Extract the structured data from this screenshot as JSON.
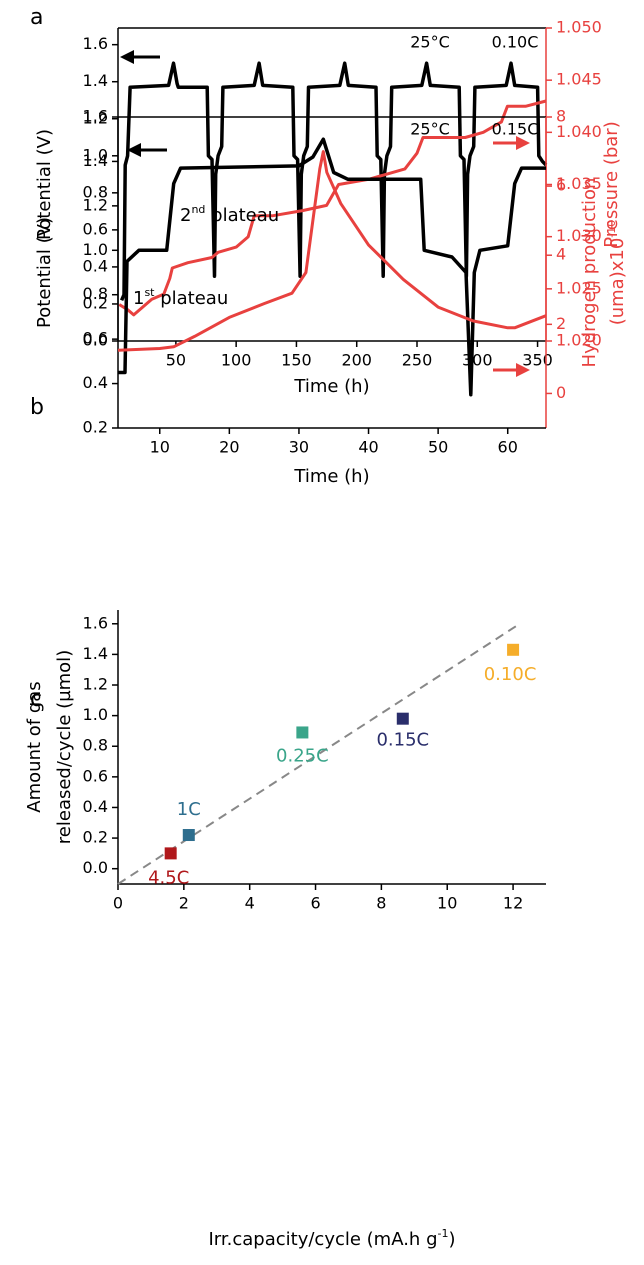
{
  "chart_data": [
    {
      "type": "line",
      "panel": "a",
      "annotations": [
        "25°C",
        "0.10C"
      ],
      "xlabel": "Time (h)",
      "ylabel": "Potential (V)",
      "y2label": "Pressure (bar)",
      "xlim": [
        2,
        357
      ],
      "xticks": [
        50,
        100,
        150,
        200,
        250,
        300,
        350
      ],
      "ylim": [
        0,
        1.69
      ],
      "yticks": [
        {
          "value": 0,
          "label": "0.0"
        },
        0.2,
        0.4,
        0.6,
        0.8,
        {
          "value": 1,
          "label": "1.0"
        },
        1.2,
        1.4,
        1.6
      ],
      "y2lim": [
        1.02,
        1.05
      ],
      "y2ticks": [
        {
          "value": 1.02,
          "label": "1.020"
        },
        1.025,
        {
          "value": 1.03,
          "label": "1.030"
        },
        1.035,
        {
          "value": 1.04,
          "label": "1.040"
        },
        1.045,
        {
          "value": 1.05,
          "label": "1.050"
        }
      ],
      "series": [
        {
          "color": "#000000",
          "x": [
            5,
            7,
            8,
            10,
            12,
            44,
            48,
            51,
            52,
            76,
            77,
            80,
            82,
            83,
            85,
            88,
            89,
            115,
            119,
            122,
            147,
            148,
            151,
            153,
            154,
            156,
            159,
            160,
            186,
            190,
            193,
            216,
            217,
            220,
            222,
            223,
            225,
            228,
            229,
            254,
            258,
            261,
            285,
            286,
            289,
            291,
            292,
            294,
            297,
            298,
            324,
            328,
            331,
            350,
            351,
            354,
            357
          ],
          "values": [
            0.22,
            0.25,
            0.95,
            1.0,
            1.37,
            1.38,
            1.5,
            1.39,
            1.37,
            1.37,
            1.0,
            0.98,
            0.35,
            0.9,
            1.0,
            1.05,
            1.37,
            1.38,
            1.5,
            1.38,
            1.37,
            1.0,
            0.98,
            0.35,
            0.9,
            1.0,
            1.05,
            1.37,
            1.38,
            1.5,
            1.38,
            1.37,
            1.0,
            0.98,
            0.35,
            0.9,
            1.0,
            1.05,
            1.37,
            1.38,
            1.5,
            1.38,
            1.37,
            1.0,
            0.98,
            0.35,
            0.9,
            1.0,
            1.05,
            1.37,
            1.38,
            1.5,
            1.38,
            1.37,
            1.0,
            0.97,
            0.95
          ]
        },
        {
          "color": "#e8413f",
          "axis": "y2",
          "x": [
            3,
            10,
            15,
            30,
            40,
            45,
            47,
            60,
            80,
            85,
            100,
            110,
            115,
            130,
            155,
            175,
            180,
            185,
            210,
            240,
            250,
            255,
            290,
            305,
            320,
            325,
            340,
            357
          ],
          "values": [
            1.0235,
            1.023,
            1.0225,
            1.024,
            1.0245,
            1.026,
            1.027,
            1.0275,
            1.028,
            1.0285,
            1.029,
            1.03,
            1.032,
            1.032,
            1.0325,
            1.033,
            1.034,
            1.035,
            1.0355,
            1.0365,
            1.038,
            1.0395,
            1.0395,
            1.04,
            1.041,
            1.0425,
            1.0425,
            1.043
          ]
        }
      ]
    },
    {
      "type": "line",
      "panel": "b",
      "annotations": [
        "25°C",
        "0.15C"
      ],
      "plateau_labels": [
        [
          "2",
          "nd",
          " plateau"
        ],
        [
          "1",
          "st",
          " plateau"
        ]
      ],
      "xlabel": "Time (h)",
      "ylabel": "Potential (V)",
      "y2label": [
        "Hydrogen production",
        "(uma)x10",
        "-10"
      ],
      "xlim": [
        4,
        65.5
      ],
      "xticks": [
        10,
        20,
        30,
        40,
        50,
        60
      ],
      "ylim": [
        0.2,
        1.6
      ],
      "yticks": [
        0.2,
        0.4,
        0.6,
        0.8,
        {
          "value": 1,
          "label": "1.0"
        },
        1.2,
        1.4,
        1.6
      ],
      "y2lim": [
        -1,
        8
      ],
      "y2ticks": [
        0,
        2,
        4,
        6,
        8
      ],
      "series": [
        {
          "color": "#000000",
          "x": [
            4,
            5,
            5.3,
            7,
            11,
            12,
            13,
            30,
            32,
            33.5,
            35,
            37,
            47.5,
            48,
            52,
            54,
            54.7,
            55.2,
            56,
            60,
            61,
            62,
            65.5
          ],
          "values": [
            0.45,
            0.45,
            0.95,
            1.0,
            1.0,
            1.3,
            1.37,
            1.38,
            1.42,
            1.5,
            1.35,
            1.32,
            1.32,
            1.0,
            0.97,
            0.9,
            0.35,
            0.9,
            1.0,
            1.02,
            1.3,
            1.37,
            1.37
          ]
        },
        {
          "color": "#e8413f",
          "axis": "y2",
          "x": [
            4,
            10,
            12,
            15,
            20,
            25,
            29,
            31,
            33,
            33.5,
            34,
            36,
            40,
            45,
            50,
            55,
            60,
            61,
            65.5
          ],
          "values": [
            1.25,
            1.3,
            1.35,
            1.65,
            2.2,
            2.6,
            2.9,
            3.5,
            6.5,
            7.0,
            6.4,
            5.5,
            4.3,
            3.3,
            2.5,
            2.1,
            1.9,
            1.9,
            2.25
          ]
        }
      ]
    },
    {
      "type": "scatter",
      "panel": "c",
      "xlabel": [
        "Irr.capacity/cycle (mA.h g",
        "-1",
        ")"
      ],
      "ylabel": [
        "Amount of gas",
        "released/cycle (µmol)"
      ],
      "xlim": [
        0,
        13
      ],
      "xticks": [
        0,
        2,
        4,
        6,
        8,
        10,
        12
      ],
      "ylim": [
        -0.1,
        1.69
      ],
      "yticks": [
        {
          "value": 0,
          "label": "0.0"
        },
        0.2,
        0.4,
        0.6,
        0.8,
        {
          "value": 1,
          "label": "1.0"
        },
        1.2,
        1.4,
        1.6
      ],
      "fit_line": {
        "color": "#888888",
        "x": [
          0,
          12.2
        ],
        "values": [
          -0.1,
          1.6
        ]
      },
      "series": [
        {
          "name": "4.5C",
          "color": "#b0181b",
          "x": [
            1.6
          ],
          "values": [
            0.1
          ]
        },
        {
          "name": "1C",
          "color": "#2e6e8e",
          "x": [
            2.15
          ],
          "values": [
            0.22
          ]
        },
        {
          "name": "0.25C",
          "color": "#3aa58a",
          "x": [
            5.6
          ],
          "values": [
            0.89
          ]
        },
        {
          "name": "0.15C",
          "color": "#2a2e6b",
          "x": [
            8.65
          ],
          "values": [
            0.98
          ]
        },
        {
          "name": "0.10C",
          "color": "#f5ad2a",
          "x": [
            12.0
          ],
          "values": [
            1.43
          ]
        }
      ]
    }
  ]
}
